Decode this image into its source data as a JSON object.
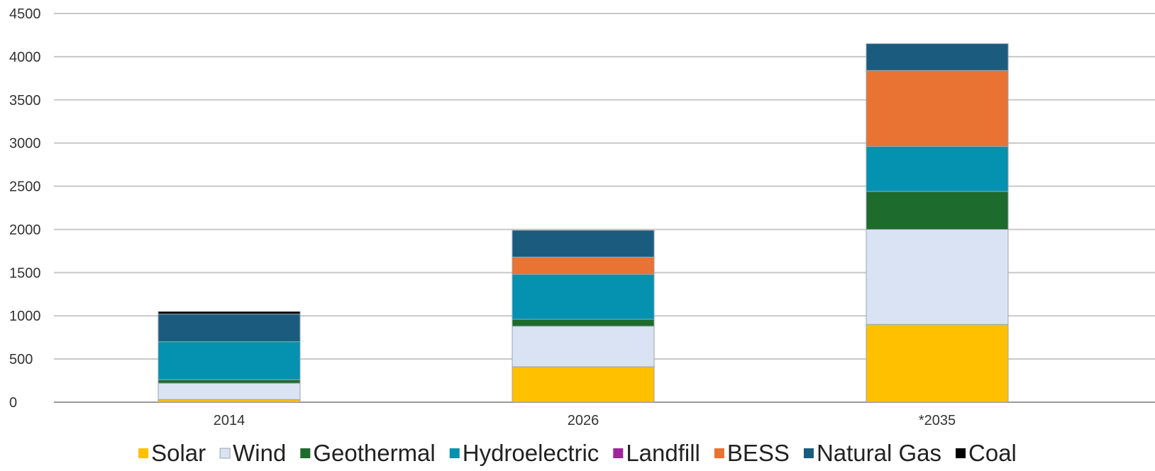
{
  "chart_data": {
    "type": "bar",
    "stacked": true,
    "categories": [
      "2014",
      "2026",
      "*2035"
    ],
    "series": [
      {
        "name": "Solar",
        "color": "#FFC000",
        "values": [
          30,
          410,
          900
        ]
      },
      {
        "name": "Wind",
        "color": "#DAE3F3",
        "values": [
          190,
          470,
          1100
        ]
      },
      {
        "name": "Geothermal",
        "color": "#1E6B2E",
        "values": [
          40,
          80,
          440
        ]
      },
      {
        "name": "Hydroelectric",
        "color": "#0591B0",
        "values": [
          440,
          520,
          520
        ]
      },
      {
        "name": "Landfill",
        "color": "#A0259A",
        "values": [
          0,
          0,
          0
        ]
      },
      {
        "name": "BESS",
        "color": "#E87332",
        "values": [
          0,
          200,
          880
        ]
      },
      {
        "name": "Natural Gas",
        "color": "#1B5C7E",
        "values": [
          320,
          310,
          310
        ]
      },
      {
        "name": "Coal",
        "color": "#000000",
        "values": [
          30,
          0,
          0
        ]
      }
    ],
    "yticks": [
      "0",
      "500",
      "1000",
      "1500",
      "2000",
      "2500",
      "3000",
      "3500",
      "4000",
      "4500"
    ],
    "ylim": [
      0,
      4500
    ],
    "grid": true,
    "legend": "bottom"
  }
}
